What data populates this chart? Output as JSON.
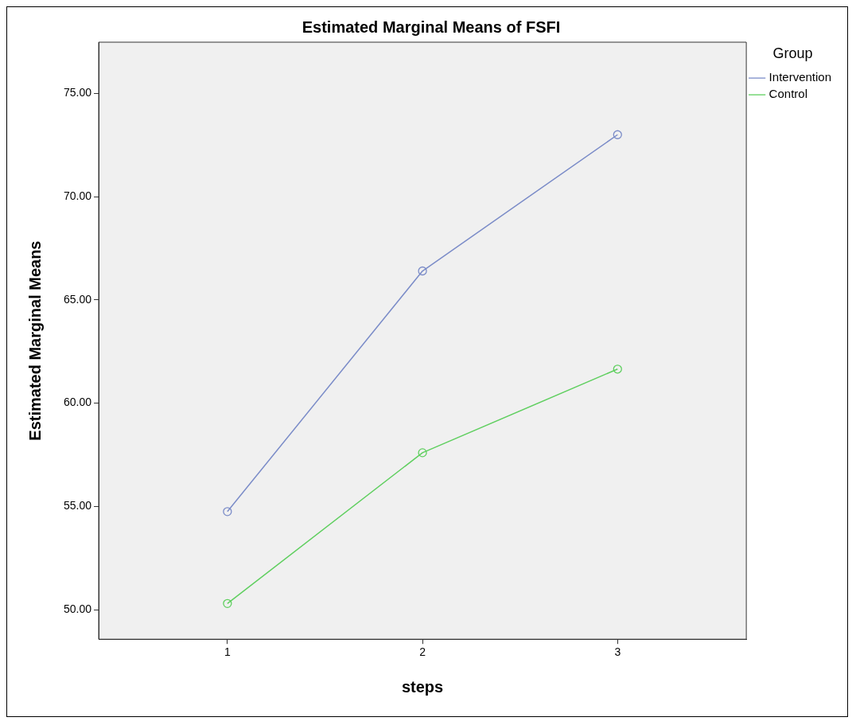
{
  "chart_data": {
    "type": "line",
    "title": "Estimated Marginal Means of FSFI",
    "xlabel": "steps",
    "ylabel": "Estimated Marginal Means",
    "legend_title": "Group",
    "x": [
      1,
      2,
      3
    ],
    "series": [
      {
        "name": "Intervention",
        "color": "#7b8cc8",
        "values": [
          54.75,
          66.4,
          73.0
        ]
      },
      {
        "name": "Control",
        "color": "#5fcf5f",
        "values": [
          50.3,
          57.6,
          61.65
        ]
      }
    ],
    "xlim": [
      0.34,
      3.66
    ],
    "xticks": [
      1,
      2,
      3
    ],
    "ylim": [
      48.57,
      77.48
    ],
    "yticks": [
      {
        "value": 50,
        "label": "50.00"
      },
      {
        "value": 55,
        "label": "55.00"
      },
      {
        "value": 60,
        "label": "60.00"
      },
      {
        "value": 65,
        "label": "65.00"
      },
      {
        "value": 70,
        "label": "70.00"
      },
      {
        "value": 75,
        "label": "75.00"
      }
    ],
    "grid": false,
    "legend": "top right",
    "marker": "circle",
    "line_style": "solid"
  }
}
